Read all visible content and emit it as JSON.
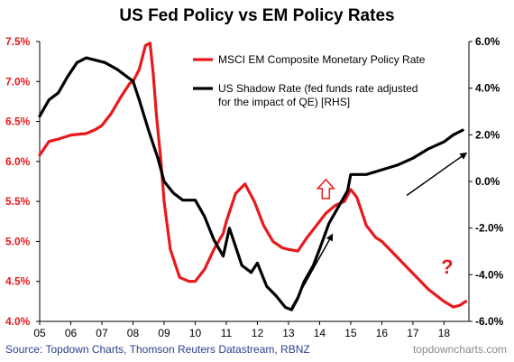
{
  "chart_data": {
    "type": "line",
    "title": "US Fed Policy vs EM Policy Rates",
    "x_ticks": [
      "05",
      "06",
      "07",
      "08",
      "09",
      "10",
      "11",
      "12",
      "13",
      "14",
      "15",
      "16",
      "17",
      "18"
    ],
    "xlim": [
      2005.0,
      2018.8
    ],
    "y_left": {
      "ylim": [
        4.0,
        7.5
      ],
      "ticks": [
        "4.0%",
        "4.5%",
        "5.0%",
        "5.5%",
        "6.0%",
        "6.5%",
        "7.0%",
        "7.5%"
      ],
      "tick_values": [
        4.0,
        4.5,
        5.0,
        5.5,
        6.0,
        6.5,
        7.0,
        7.5
      ]
    },
    "y_right": {
      "ylim": [
        -6.0,
        6.0
      ],
      "ticks": [
        "-6.0%",
        "-4.0%",
        "-2.0%",
        "0.0%",
        "2.0%",
        "4.0%",
        "6.0%"
      ],
      "tick_values": [
        -6.0,
        -4.0,
        -2.0,
        0.0,
        2.0,
        4.0,
        6.0
      ]
    },
    "series": [
      {
        "name": "MSCI EM Composite Monetary Policy Rate",
        "axis": "left",
        "color": "#e8191d",
        "x": [
          2005.0,
          2005.3,
          2005.6,
          2006.0,
          2006.5,
          2006.8,
          2007.0,
          2007.3,
          2007.6,
          2007.9,
          2008.0,
          2008.2,
          2008.4,
          2008.55,
          2008.65,
          2008.75,
          2008.9,
          2009.0,
          2009.2,
          2009.5,
          2009.8,
          2010.0,
          2010.3,
          2010.6,
          2010.9,
          2011.0,
          2011.3,
          2011.6,
          2011.9,
          2012.2,
          2012.5,
          2012.8,
          2013.0,
          2013.3,
          2013.6,
          2013.9,
          2014.2,
          2014.5,
          2014.8,
          2015.0,
          2015.2,
          2015.5,
          2015.8,
          2016.0,
          2016.5,
          2017.0,
          2017.5,
          2018.0,
          2018.3,
          2018.5,
          2018.7
        ],
        "values": [
          6.08,
          6.25,
          6.28,
          6.33,
          6.35,
          6.4,
          6.45,
          6.6,
          6.8,
          6.98,
          7.0,
          7.15,
          7.45,
          7.48,
          7.1,
          6.6,
          6.0,
          5.5,
          4.9,
          4.55,
          4.5,
          4.5,
          4.65,
          4.9,
          5.1,
          5.25,
          5.6,
          5.72,
          5.5,
          5.2,
          5.0,
          4.92,
          4.9,
          4.88,
          5.05,
          5.2,
          5.35,
          5.45,
          5.5,
          5.65,
          5.55,
          5.2,
          5.05,
          5.0,
          4.8,
          4.6,
          4.4,
          4.25,
          4.18,
          4.2,
          4.25
        ]
      },
      {
        "name": "US Shadow Rate (fed funds rate adjusted for the impact of QE) [RHS]",
        "axis": "right",
        "color": "#000000",
        "x": [
          2005.0,
          2005.3,
          2005.6,
          2005.9,
          2006.2,
          2006.5,
          2006.8,
          2007.1,
          2007.5,
          2007.8,
          2008.0,
          2008.2,
          2008.5,
          2008.8,
          2009.0,
          2009.3,
          2009.6,
          2010.0,
          2010.3,
          2010.6,
          2010.9,
          2011.1,
          2011.3,
          2011.5,
          2011.8,
          2012.0,
          2012.3,
          2012.6,
          2012.9,
          2013.1,
          2013.3,
          2013.5,
          2013.8,
          2014.0,
          2014.3,
          2014.6,
          2014.9,
          2015.0,
          2015.5,
          2016.0,
          2016.5,
          2017.0,
          2017.5,
          2018.0,
          2018.3,
          2018.6
        ],
        "values": [
          2.8,
          3.5,
          3.8,
          4.5,
          5.1,
          5.3,
          5.2,
          5.1,
          4.8,
          4.5,
          4.3,
          3.5,
          2.2,
          1.0,
          0.0,
          -0.5,
          -0.8,
          -0.8,
          -1.5,
          -2.5,
          -3.2,
          -2.0,
          -2.8,
          -3.6,
          -3.9,
          -3.5,
          -4.5,
          -4.9,
          -5.4,
          -5.5,
          -5.0,
          -4.3,
          -3.6,
          -2.9,
          -1.8,
          -1.1,
          -0.4,
          0.3,
          0.3,
          0.5,
          0.7,
          1.0,
          1.4,
          1.7,
          2.0,
          2.2
        ]
      }
    ],
    "legend": {
      "placement": "top-right",
      "entries": [
        [
          "MSCI EM Composite Monetary Policy Rate"
        ],
        [
          "US Shadow Rate (fed funds rate adjusted",
          "for the impact of QE) [RHS]"
        ]
      ]
    },
    "annotations": [
      {
        "kind": "up-arrow-outline",
        "color": "#e8191d",
        "x": 2014.2,
        "y_left": 5.65
      },
      {
        "kind": "question-mark",
        "text": "?",
        "color": "#e8191d",
        "x": 2018.1,
        "y_left": 4.6
      },
      {
        "kind": "arrow",
        "color": "#000000",
        "from": [
          2013.1,
          -5.4
        ],
        "to": [
          2014.4,
          -2.3
        ],
        "axis": "right"
      },
      {
        "kind": "arrow",
        "color": "#000000",
        "from": [
          2016.8,
          -0.6
        ],
        "to": [
          2018.7,
          1.2
        ],
        "axis": "right"
      }
    ],
    "grid": false
  },
  "footer": {
    "source": "Source: Topdown Charts, Thomson Reuters Datastream, RBNZ",
    "brand": "topdowncharts.com"
  }
}
